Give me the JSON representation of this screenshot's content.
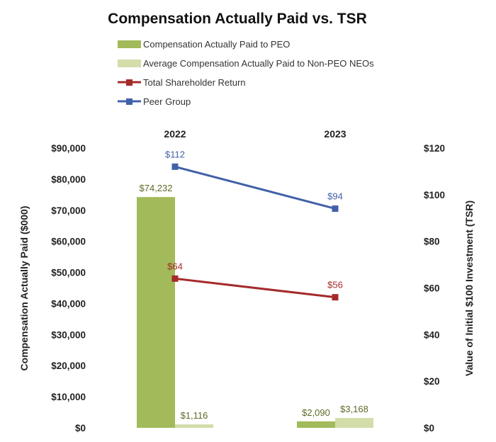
{
  "chart_data": {
    "type": "bar+line",
    "title": "Compensation Actually Paid vs. TSR",
    "categories": [
      "2022",
      "2023"
    ],
    "ylabel_left": "Compensation Actually Paid ($000)",
    "ylabel_right": "Value of Initial $100 Investment (TSR)",
    "ylim_left": [
      0,
      90000
    ],
    "ylim_right": [
      0,
      120
    ],
    "yticks_left": [
      "$0",
      "$10,000",
      "$20,000",
      "$30,000",
      "$40,000",
      "$50,000",
      "$60,000",
      "$70,000",
      "$80,000",
      "$90,000"
    ],
    "yticks_right": [
      "$0",
      "$20",
      "$40",
      "$60",
      "$80",
      "$100",
      "$120"
    ],
    "bar_series": [
      {
        "name": "Compensation Actually Paid to PEO",
        "color": "#a3ba5a",
        "values": [
          74232,
          2090
        ],
        "labels": [
          "$74,232",
          "$2,090"
        ]
      },
      {
        "name": "Average Compensation Actually Paid to Non-PEO NEOs",
        "color": "#d2ddaa",
        "values": [
          1116,
          3168
        ],
        "labels": [
          "$1,116",
          "$3,168"
        ]
      }
    ],
    "line_series": [
      {
        "name": "Total Shareholder Return",
        "color": "#a52a2a",
        "values": [
          64,
          56
        ],
        "labels": [
          "$64",
          "$56"
        ]
      },
      {
        "name": "Peer Group",
        "color": "#4161a8",
        "values": [
          112,
          94
        ],
        "labels": [
          "$112",
          "$94"
        ]
      }
    ],
    "label_colors": {
      "bars": "#5b6b25"
    },
    "legend": [
      "Compensation Actually Paid to PEO",
      "Average Compensation Actually Paid to Non-PEO NEOs",
      "Total Shareholder Return",
      "Peer Group"
    ],
    "grid": false
  }
}
